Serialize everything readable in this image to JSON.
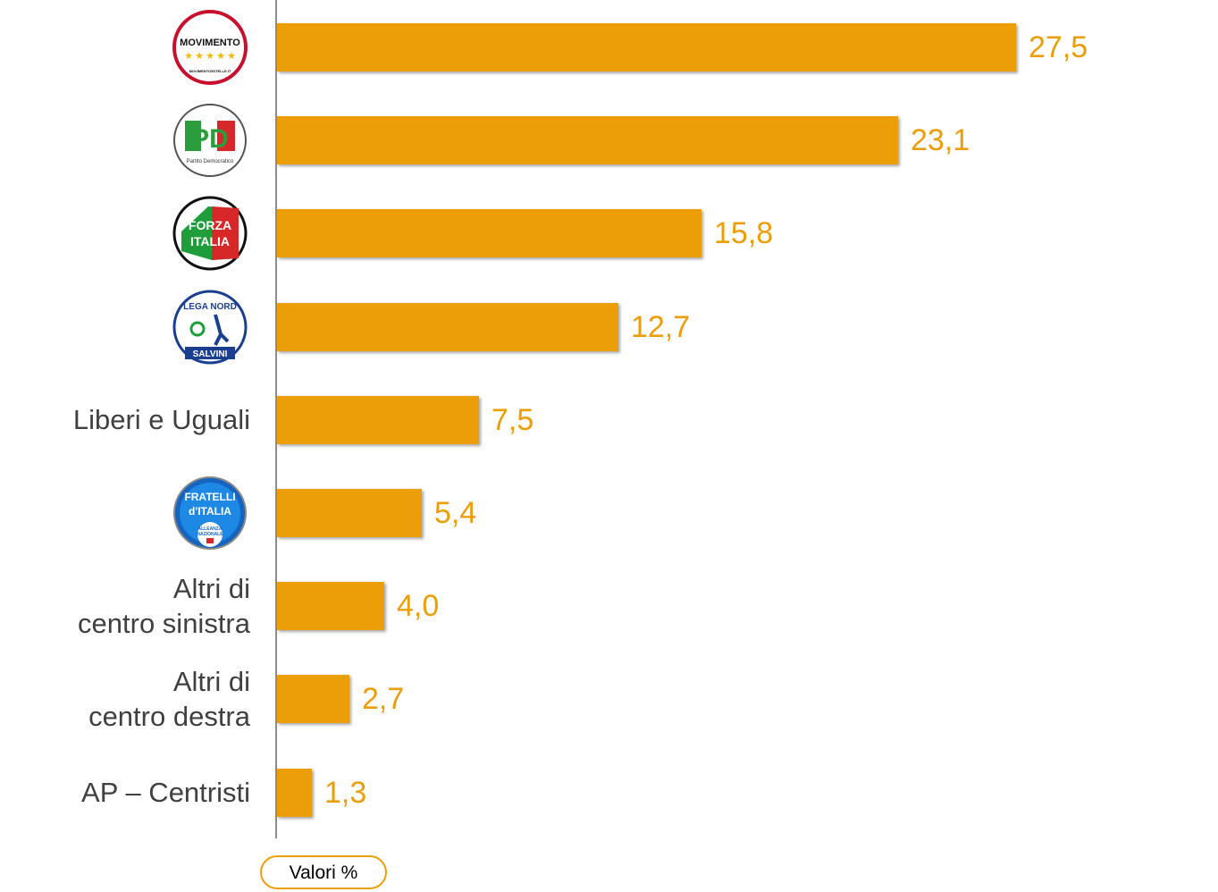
{
  "chart_data": {
    "type": "bar",
    "orientation": "horizontal",
    "categories": [
      "Movimento 5 Stelle",
      "Partito Democratico",
      "Forza Italia",
      "Lega Nord Salvini",
      "Liberi e Uguali",
      "Fratelli d'Italia",
      "Altri di\ncentro sinistra",
      "Altri di\ncentro destra",
      "AP – Centristi"
    ],
    "category_display": [
      "logo",
      "logo",
      "logo",
      "logo",
      "text",
      "logo",
      "text",
      "text",
      "text"
    ],
    "logo_icons": [
      "m5s-logo-icon",
      "pd-logo-icon",
      "forza-italia-logo-icon",
      "lega-nord-logo-icon",
      null,
      "fratelli-italia-logo-icon",
      null,
      null,
      null
    ],
    "values": [
      27.5,
      23.1,
      15.8,
      12.7,
      7.5,
      5.4,
      4.0,
      2.7,
      1.3
    ],
    "value_labels": [
      "27,5",
      "23,1",
      "15,8",
      "12,7",
      "7,5",
      "5,4",
      "4,0",
      "2,7",
      "1,3"
    ],
    "unit_label": "Valori %",
    "xlim": [
      0,
      27.5
    ],
    "grid": false,
    "bar_color": "#eb9e08",
    "label_color": "#eb9e08",
    "logo_text": {
      "m5s": [
        "MOVIMENTO",
        "MOVIMENTO5STELLE.IT"
      ],
      "pd": [
        "PD",
        "Partito Democratico"
      ],
      "fi": [
        "FORZA",
        "ITALIA"
      ],
      "lega": [
        "LEGA NORD",
        "SALVINI"
      ],
      "fdi": [
        "FRATELLI",
        "d'ITALIA",
        "ALLEANZA",
        "NAZIONALE"
      ]
    }
  }
}
